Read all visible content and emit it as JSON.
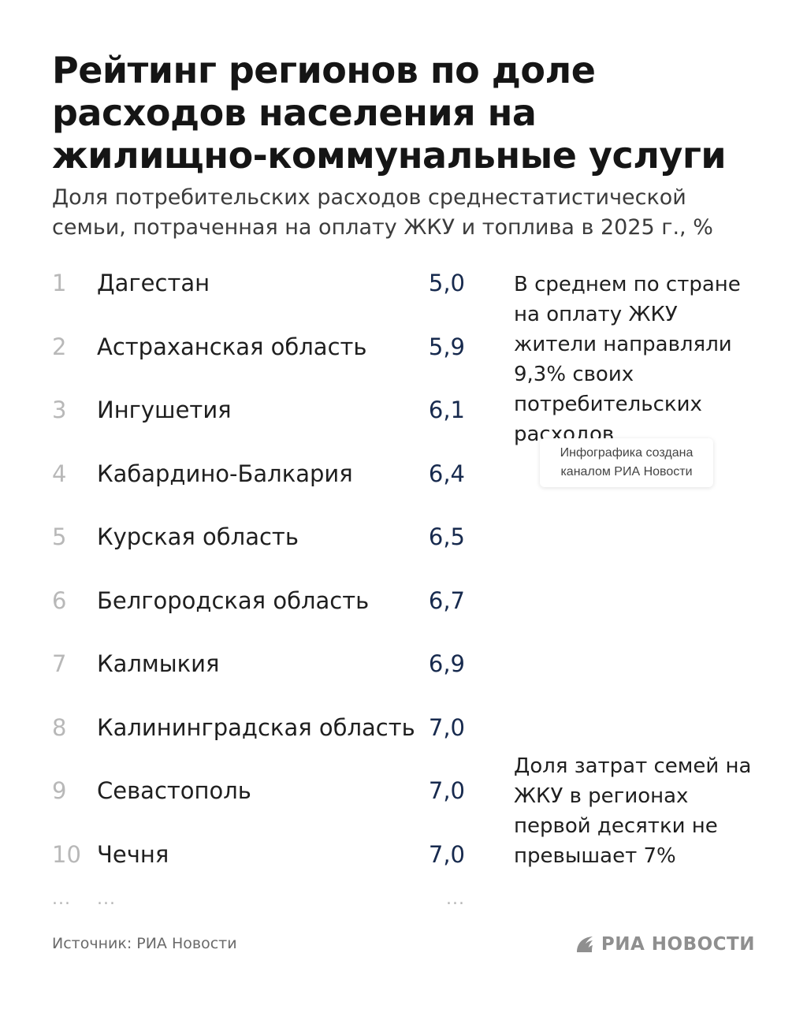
{
  "header": {
    "title": "Рейтинг регионов по доле расходов населения на жилищно-коммунальные услуги",
    "subtitle": "Доля потребительских расходов среднестатистической семьи, потраченная на оплату ЖКУ и топлива в 2025 г., %"
  },
  "chart_data": {
    "type": "table",
    "title": "Рейтинг регионов по доле расходов населения на жилищно-коммунальные услуги",
    "subtitle": "Доля потребительских расходов среднестатистической семьи, потраченная на оплату ЖКУ и топлива в 2025 г., %",
    "columns": [
      "rank",
      "region",
      "value"
    ],
    "rows": [
      {
        "rank": "1",
        "region": "Дагестан",
        "value": "5,0"
      },
      {
        "rank": "2",
        "region": "Астраханская область",
        "value": "5,9"
      },
      {
        "rank": "3",
        "region": "Ингушетия",
        "value": "6,1"
      },
      {
        "rank": "4",
        "region": "Кабардино-Балкария",
        "value": "6,4"
      },
      {
        "rank": "5",
        "region": "Курская область",
        "value": "6,5"
      },
      {
        "rank": "6",
        "region": "Белгородская область",
        "value": "6,7"
      },
      {
        "rank": "7",
        "region": "Калмыкия",
        "value": "6,9"
      },
      {
        "rank": "8",
        "region": "Калининградская область",
        "value": "7,0"
      },
      {
        "rank": "9",
        "region": "Севастополь",
        "value": "7,0"
      },
      {
        "rank": "10",
        "region": "Чечня",
        "value": "7,0"
      }
    ],
    "ellipsis": "..."
  },
  "notes": {
    "average": "В среднем по стране на оплату ЖКУ жители направляли 9,3% своих потребительских расходов",
    "top_ten": "Доля затрат семей на ЖКУ в регионах первой десятки не превышает 7%"
  },
  "badge": {
    "line1": "Инфографика создана",
    "line2": "каналом РИА Новости"
  },
  "footer": {
    "source": "Источник: РИА Новости",
    "logo_text": "РИА НОВОСТИ",
    "logo_icon": "ria-logo-icon"
  },
  "colors": {
    "value": "#172a4e",
    "rank": "#b8b8b8",
    "text": "#1f1f1f",
    "logo": "#8f8f8f"
  }
}
